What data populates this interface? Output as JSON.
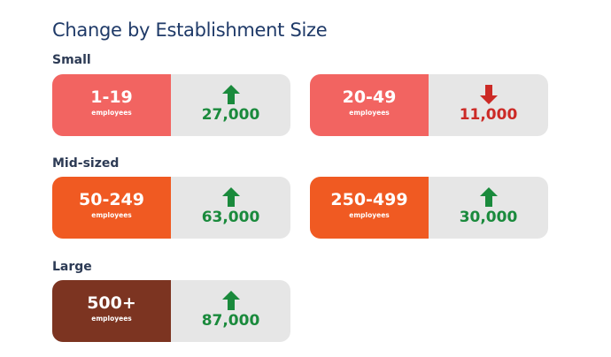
{
  "title": "Change by Establishment Size",
  "sections": [
    {
      "label": "Small"
    },
    {
      "label": "Mid-sized"
    },
    {
      "label": "Large"
    }
  ],
  "unit_label": "employees",
  "colors": {
    "small": "#f26461",
    "mid": "#f05a22",
    "large": "#7c3421",
    "up": "#1a8a3c",
    "down": "#cc2a26",
    "card_bg": "#e6e6e6",
    "title": "#1f3a68"
  },
  "chart_data": {
    "type": "table",
    "title": "Change by Establishment Size",
    "groups": [
      "Small",
      "Mid-sized",
      "Large"
    ],
    "rows": [
      {
        "group": "Small",
        "size": "1-19",
        "unit": "employees",
        "change": 27000,
        "change_label": "27,000",
        "direction": "up"
      },
      {
        "group": "Small",
        "size": "20-49",
        "unit": "employees",
        "change": -11000,
        "change_label": "11,000",
        "direction": "down"
      },
      {
        "group": "Mid-sized",
        "size": "50-249",
        "unit": "employees",
        "change": 63000,
        "change_label": "63,000",
        "direction": "up"
      },
      {
        "group": "Mid-sized",
        "size": "250-499",
        "unit": "employees",
        "change": 30000,
        "change_label": "30,000",
        "direction": "up"
      },
      {
        "group": "Large",
        "size": "500+",
        "unit": "employees",
        "change": 87000,
        "change_label": "87,000",
        "direction": "up"
      }
    ]
  }
}
